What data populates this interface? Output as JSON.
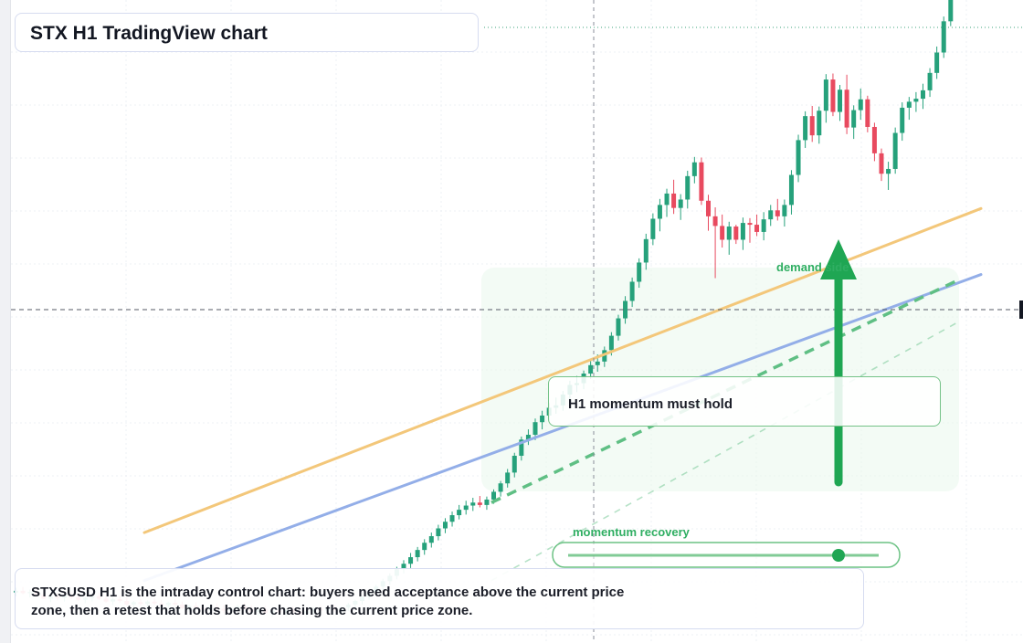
{
  "title": "STX H1 TradingView chart",
  "callout": {
    "text": "H1 momentum must hold"
  },
  "zones": {
    "demand_label": "demand side",
    "momentum_label": "momentum recovery"
  },
  "summary": {
    "text": "STXSUSD H1 is the intraday control chart: buyers need acceptance above the current price zone, then a retest that holds before chasing the current price zone."
  },
  "colors": {
    "up": "#26a17b",
    "down": "#e84a5f",
    "ma_fast": "#f3c77a",
    "ma_slow": "#93aee8",
    "trendline": "#5fbf84",
    "arrow": "#1fa653",
    "grid": "#eef0f4"
  },
  "chart_data": {
    "type": "candlestick",
    "symbol": "STXSUSD",
    "timeframe": "H1",
    "price_scale": [
      0,
      100
    ],
    "current_price": 63,
    "candles": [
      [
        10.0,
        10.8,
        9.4,
        10.3
      ],
      [
        10.3,
        10.9,
        9.7,
        9.9
      ],
      [
        9.9,
        10.5,
        9.2,
        10.1
      ],
      [
        10.1,
        10.7,
        9.5,
        9.6
      ],
      [
        9.6,
        10.2,
        8.9,
        9.0
      ],
      [
        9.0,
        9.6,
        8.4,
        9.3
      ],
      [
        9.3,
        9.9,
        8.7,
        9.1
      ],
      [
        9.1,
        9.7,
        8.5,
        9.5
      ],
      [
        9.5,
        10.1,
        8.9,
        9.2
      ],
      [
        9.2,
        9.8,
        8.6,
        8.8
      ],
      [
        8.8,
        9.4,
        8.2,
        9.1
      ],
      [
        9.1,
        9.8,
        8.5,
        9.4
      ],
      [
        9.4,
        10.0,
        8.8,
        9.0
      ],
      [
        9.0,
        9.6,
        8.3,
        8.5
      ],
      [
        8.5,
        9.2,
        7.9,
        8.9
      ],
      [
        8.9,
        9.5,
        8.3,
        8.6
      ],
      [
        8.6,
        9.1,
        7.8,
        8.0
      ],
      [
        8.0,
        8.6,
        7.4,
        8.4
      ],
      [
        8.4,
        9.0,
        7.8,
        8.1
      ],
      [
        8.1,
        8.7,
        7.5,
        8.5
      ],
      [
        8.5,
        9.1,
        7.9,
        8.2
      ],
      [
        8.2,
        8.8,
        7.6,
        7.9
      ],
      [
        7.9,
        8.5,
        7.3,
        8.3
      ],
      [
        8.3,
        8.9,
        7.7,
        8.0
      ],
      [
        8.0,
        8.5,
        7.2,
        7.4
      ],
      [
        7.4,
        8.0,
        6.8,
        7.8
      ],
      [
        7.8,
        8.4,
        7.2,
        7.5
      ],
      [
        7.5,
        8.1,
        6.9,
        7.2
      ],
      [
        7.2,
        7.8,
        6.6,
        7.6
      ],
      [
        7.6,
        8.2,
        7.0,
        7.3
      ],
      [
        7.3,
        7.9,
        6.6,
        7.0
      ],
      [
        7.0,
        7.6,
        6.3,
        7.4
      ],
      [
        7.4,
        8.0,
        6.8,
        7.7
      ],
      [
        7.7,
        8.3,
        7.1,
        7.3
      ],
      [
        7.3,
        7.9,
        6.5,
        6.8
      ],
      [
        6.8,
        7.4,
        6.1,
        7.2
      ],
      [
        7.2,
        7.8,
        6.5,
        6.6
      ],
      [
        6.6,
        7.2,
        5.9,
        7.0
      ],
      [
        7.0,
        7.6,
        6.4,
        6.7
      ],
      [
        6.7,
        7.4,
        6.0,
        7.1
      ],
      [
        7.1,
        7.7,
        6.5,
        6.8
      ],
      [
        6.8,
        7.3,
        6.1,
        6.5
      ],
      [
        6.5,
        7.1,
        5.8,
        6.9
      ],
      [
        6.9,
        7.6,
        6.3,
        7.3
      ],
      [
        7.3,
        7.9,
        6.7,
        7.0
      ],
      [
        7.0,
        7.6,
        6.4,
        7.4
      ],
      [
        7.4,
        8.0,
        6.8,
        7.1
      ],
      [
        7.1,
        7.7,
        6.5,
        7.5
      ],
      [
        7.5,
        8.3,
        6.9,
        8.0
      ],
      [
        8.0,
        8.8,
        7.4,
        8.6
      ],
      [
        8.6,
        9.5,
        8.0,
        9.3
      ],
      [
        9.3,
        10.4,
        8.8,
        10.1
      ],
      [
        10.1,
        11.3,
        9.6,
        11.0
      ],
      [
        11.0,
        12.3,
        10.4,
        11.9
      ],
      [
        11.9,
        13.2,
        11.3,
        12.8
      ],
      [
        12.8,
        14.3,
        12.2,
        13.9
      ],
      [
        13.9,
        15.4,
        13.2,
        14.8
      ],
      [
        14.8,
        16.6,
        14.1,
        15.9
      ],
      [
        15.9,
        17.6,
        15.2,
        17.1
      ],
      [
        17.1,
        18.9,
        16.3,
        18.3
      ],
      [
        18.3,
        20.0,
        17.5,
        19.4
      ],
      [
        19.4,
        21.3,
        18.7,
        20.7
      ],
      [
        20.7,
        22.4,
        19.9,
        21.8
      ],
      [
        21.8,
        23.5,
        21.0,
        22.9
      ],
      [
        22.9,
        24.6,
        22.2,
        23.8
      ],
      [
        23.8,
        25.3,
        23.0,
        24.5
      ],
      [
        24.5,
        25.8,
        23.6,
        25.0
      ],
      [
        25.0,
        26.1,
        24.2,
        24.6
      ],
      [
        24.6,
        26.0,
        23.8,
        25.5
      ],
      [
        25.5,
        27.2,
        24.8,
        26.8
      ],
      [
        26.8,
        28.6,
        26.0,
        28.2
      ],
      [
        28.2,
        30.6,
        27.5,
        30.0
      ],
      [
        30.0,
        33.3,
        29.2,
        32.8
      ],
      [
        32.8,
        36.0,
        32.0,
        35.5
      ],
      [
        35.5,
        37.2,
        34.6,
        36.3
      ],
      [
        36.3,
        39.0,
        35.4,
        38.4
      ],
      [
        38.4,
        40.3,
        37.2,
        39.5
      ],
      [
        39.5,
        41.6,
        38.6,
        40.8
      ],
      [
        40.8,
        42.5,
        39.8,
        41.2
      ],
      [
        41.2,
        43.6,
        40.3,
        43.0
      ],
      [
        43.0,
        45.3,
        42.1,
        44.6
      ],
      [
        44.6,
        46.1,
        43.4,
        44.9
      ],
      [
        44.9,
        47.0,
        43.9,
        46.5
      ],
      [
        46.5,
        48.6,
        45.6,
        47.9
      ],
      [
        47.9,
        49.7,
        46.8,
        48.5
      ],
      [
        48.5,
        51.0,
        47.6,
        50.4
      ],
      [
        50.4,
        53.4,
        49.5,
        52.8
      ],
      [
        52.8,
        56.3,
        52.0,
        55.7
      ],
      [
        55.7,
        59.4,
        54.8,
        58.6
      ],
      [
        58.6,
        62.5,
        57.6,
        61.8
      ],
      [
        61.8,
        65.7,
        60.8,
        65.0
      ],
      [
        65.0,
        69.8,
        63.8,
        68.9
      ],
      [
        68.9,
        73.2,
        67.9,
        72.3
      ],
      [
        72.3,
        75.6,
        70.2,
        74.6
      ],
      [
        74.6,
        77.3,
        72.6,
        76.5
      ],
      [
        76.5,
        78.8,
        73.1,
        74.1
      ],
      [
        74.1,
        76.4,
        72.1,
        75.5
      ],
      [
        75.5,
        80.3,
        74.0,
        79.4
      ],
      [
        79.4,
        82.6,
        78.2,
        81.7
      ],
      [
        81.7,
        82.5,
        74.6,
        75.3
      ],
      [
        75.3,
        76.3,
        70.3,
        72.7
      ],
      [
        72.7,
        74.2,
        62.4,
        71.1
      ],
      [
        71.1,
        73.0,
        67.5,
        68.8
      ],
      [
        68.8,
        71.8,
        66.3,
        71.0
      ],
      [
        71.0,
        71.3,
        68.1,
        68.8
      ],
      [
        68.8,
        72.5,
        67.1,
        71.6
      ],
      [
        71.6,
        72.4,
        68.3,
        71.3
      ],
      [
        71.3,
        73.0,
        69.4,
        70.1
      ],
      [
        70.1,
        73.4,
        68.7,
        72.2
      ],
      [
        72.2,
        74.6,
        71.1,
        73.7
      ],
      [
        73.7,
        75.6,
        72.0,
        72.7
      ],
      [
        72.7,
        75.5,
        71.0,
        74.6
      ],
      [
        74.6,
        80.4,
        73.0,
        79.6
      ],
      [
        79.6,
        86.3,
        78.4,
        85.4
      ],
      [
        85.4,
        90.2,
        84.1,
        89.4
      ],
      [
        89.4,
        91.1,
        85.1,
        86.2
      ],
      [
        86.2,
        91.0,
        84.8,
        90.3
      ],
      [
        90.3,
        96.4,
        88.3,
        95.5
      ],
      [
        95.5,
        96.5,
        89.4,
        90.1
      ],
      [
        90.1,
        94.6,
        88.6,
        93.8
      ],
      [
        93.8,
        96.3,
        86.4,
        87.5
      ],
      [
        87.5,
        91.2,
        85.6,
        90.4
      ],
      [
        90.4,
        94.0,
        88.8,
        92.2
      ],
      [
        92.2,
        92.8,
        86.7,
        87.6
      ],
      [
        87.6,
        88.3,
        81.9,
        83.2
      ],
      [
        83.2,
        84.0,
        78.6,
        79.8
      ],
      [
        79.8,
        81.8,
        77.1,
        80.6
      ],
      [
        80.6,
        87.5,
        79.8,
        86.6
      ],
      [
        86.6,
        91.7,
        85.3,
        90.8
      ],
      [
        90.8,
        92.6,
        88.8,
        91.8
      ],
      [
        91.8,
        93.4,
        90.1,
        92.3
      ],
      [
        92.3,
        94.8,
        90.6,
        93.7
      ],
      [
        93.7,
        97.4,
        92.6,
        96.6
      ],
      [
        96.6,
        101.0,
        95.6,
        100.0
      ],
      [
        100.0,
        106.0,
        99.1,
        105.2
      ],
      [
        105.2,
        111.2,
        104.4,
        110.4
      ]
    ],
    "ma_fast": {
      "start": 20.0,
      "end": 74.0
    },
    "ma_slow": {
      "start": 12.0,
      "end": 63.0
    },
    "trendlines": {
      "main": [
        25,
        62
      ],
      "lower": [
        12,
        55
      ]
    },
    "zones": {
      "demand": [
        25,
        65
      ],
      "momentum": [
        16,
        22
      ]
    }
  }
}
